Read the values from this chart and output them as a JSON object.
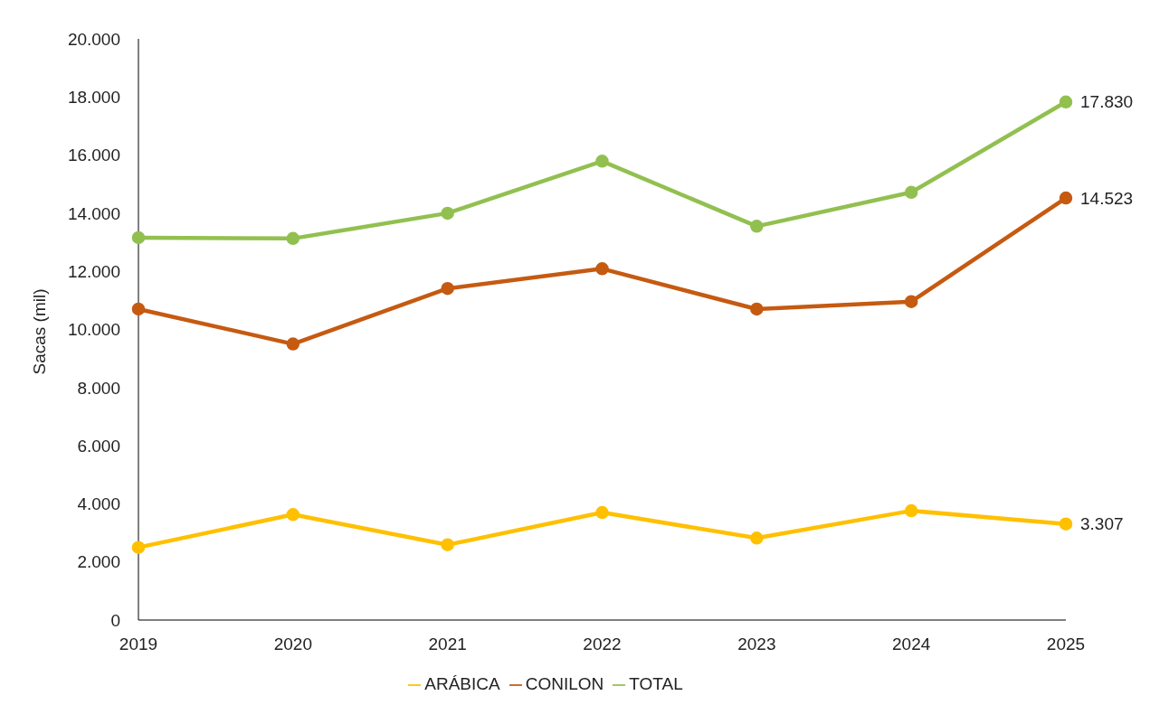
{
  "chart_data": {
    "type": "line",
    "ylabel": "Sacas (mil)",
    "categories": [
      "2019",
      "2020",
      "2021",
      "2022",
      "2023",
      "2024",
      "2025"
    ],
    "series": [
      {
        "name": "ARÁBICA",
        "color": "#ffc000",
        "values": [
          2500,
          3630,
          2590,
          3700,
          2820,
          3760,
          3307
        ],
        "value_labels": [
          null,
          null,
          null,
          null,
          null,
          null,
          "3.307"
        ]
      },
      {
        "name": "CONILON",
        "color": "#c55a11",
        "values": [
          10700,
          9500,
          11410,
          12090,
          10700,
          10960,
          14523
        ],
        "value_labels": [
          null,
          null,
          null,
          null,
          null,
          null,
          "14.523"
        ]
      },
      {
        "name": "TOTAL",
        "color": "#92c050",
        "values": [
          13160,
          13130,
          14000,
          15790,
          13550,
          14720,
          17830
        ],
        "value_labels": [
          null,
          null,
          null,
          null,
          null,
          null,
          "17.830"
        ]
      }
    ],
    "ylim": [
      0,
      20000
    ],
    "yticks": [
      0,
      {
        "value": 2000,
        "label": "2.000"
      },
      {
        "value": 4000,
        "label": "4.000"
      },
      {
        "value": 6000,
        "label": "6.000"
      },
      {
        "value": 8000,
        "label": "8.000"
      },
      {
        "value": 10000,
        "label": "10.000"
      },
      {
        "value": 12000,
        "label": "12.000"
      },
      {
        "value": 14000,
        "label": "14.000"
      },
      {
        "value": 16000,
        "label": "16.000"
      },
      {
        "value": 18000,
        "label": "18.000"
      },
      {
        "value": 20000,
        "label": "20.000"
      }
    ],
    "grid": false,
    "legend": "bottom",
    "marker": "circle",
    "line_style": "solid"
  }
}
